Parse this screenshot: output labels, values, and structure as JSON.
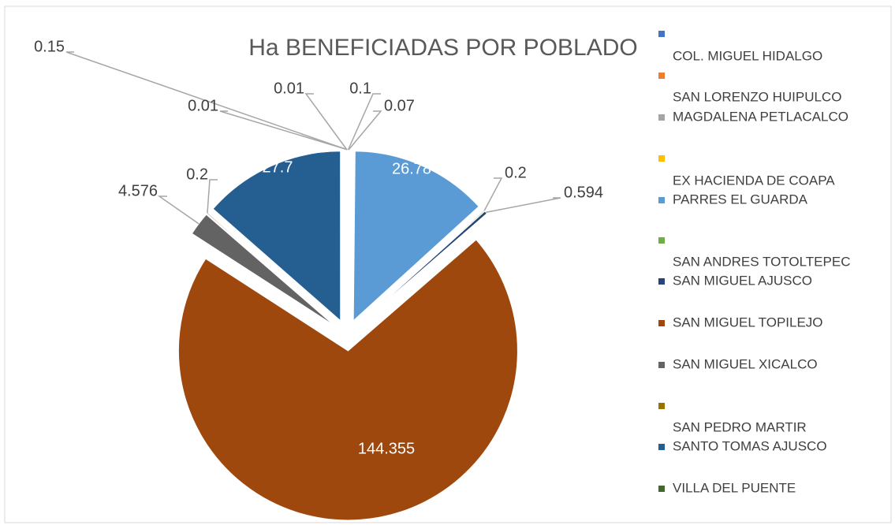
{
  "chart_data": {
    "type": "pie",
    "title": "Ha BENEFICIADAS POR POBLADO",
    "categories": [
      "COL. MIGUEL HIDALGO",
      "SAN LORENZO HUIPULCO",
      "MAGDALENA PETLACALCO",
      "EX HACIENDA DE COAPA",
      "PARRES EL GUARDA",
      "SAN ANDRES TOTOLTEPEC",
      "SAN MIGUEL AJUSCO",
      "SAN MIGUEL TOPILEJO",
      "SAN MIGUEL XICALCO",
      "SAN PEDRO MARTIR",
      "SANTO TOMAS AJUSCO",
      "VILLA DEL PUENTE"
    ],
    "values": [
      0.15,
      0.01,
      0.1,
      0.07,
      26.78,
      0.2,
      0.594,
      144.355,
      4.576,
      0.2,
      27.7,
      0.01
    ],
    "colors": [
      "#4472c4",
      "#ed7d31",
      "#a5a5a5",
      "#ffc000",
      "#5b9bd5",
      "#70ad47",
      "#264478",
      "#9e480e",
      "#636363",
      "#997300",
      "#255e91",
      "#43682b"
    ],
    "legend": "right"
  }
}
